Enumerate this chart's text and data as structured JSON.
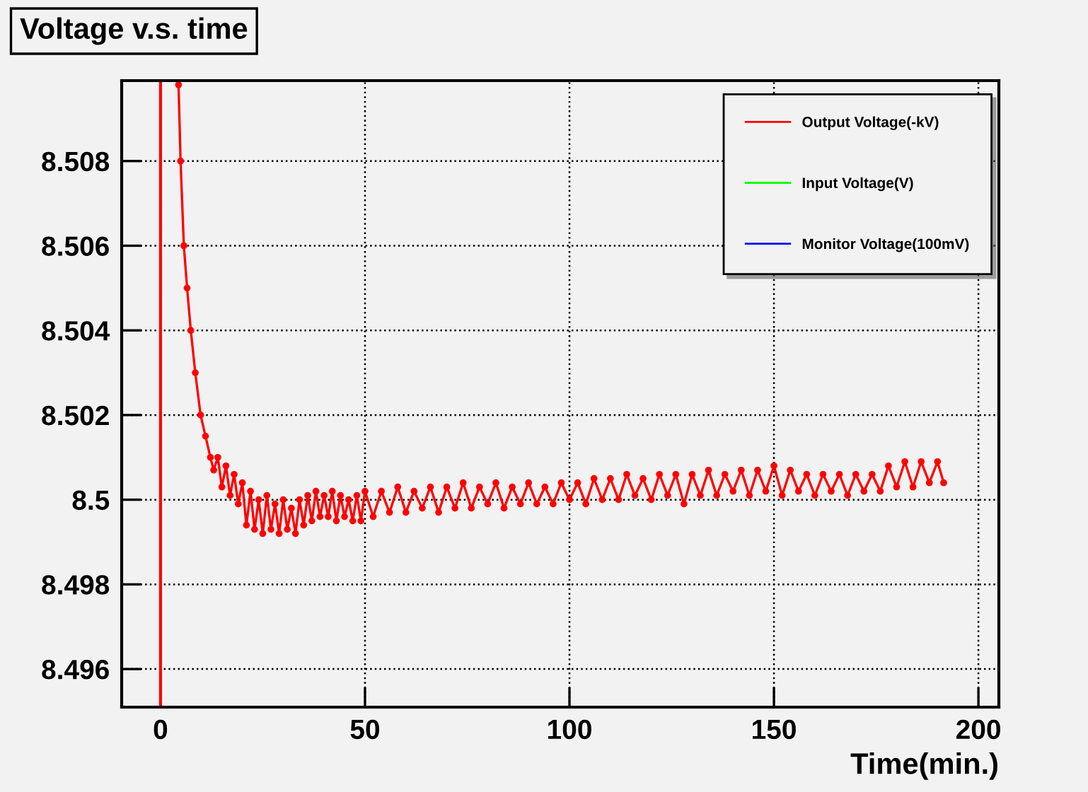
{
  "chart_data": {
    "type": "line",
    "title": "Voltage v.s. time",
    "xlabel": "Time(min.)",
    "xlim": [
      -9.5,
      205
    ],
    "xticks": [
      0,
      50,
      100,
      150,
      200
    ],
    "ylim": [
      8.4951,
      8.5099
    ],
    "yticks": [
      8.496,
      8.498,
      8.5,
      8.502,
      8.504,
      8.506,
      8.508
    ],
    "grid": true,
    "legend": "top right",
    "marker": "circle",
    "line_style": "solid",
    "ref_lines": [
      {
        "axis": "x",
        "value": 0,
        "color": "#ff0000"
      }
    ],
    "series": [
      {
        "name": "Output Voltage(-kV)",
        "color": "#ff0000",
        "x": [
          4.4,
          4.9,
          5.7,
          6.5,
          7.4,
          8.5,
          9.8,
          11,
          12.2,
          13,
          14,
          15,
          16,
          17,
          18,
          19,
          20,
          21,
          22,
          23,
          24,
          25,
          26,
          27,
          28,
          29,
          30,
          31,
          32,
          33,
          34,
          35,
          36,
          37,
          38,
          39,
          40,
          41,
          42,
          43,
          44,
          45,
          46,
          47,
          48,
          49,
          50,
          52,
          54,
          56,
          58,
          60,
          62,
          64,
          66,
          68,
          70,
          72,
          74,
          76,
          78,
          80,
          82,
          84,
          86,
          88,
          90,
          92,
          94,
          96,
          98,
          100,
          102,
          104,
          106,
          108,
          110,
          112,
          114,
          116,
          118,
          120,
          122,
          124,
          126,
          128,
          130,
          132,
          134,
          136,
          138,
          140,
          142,
          144,
          146,
          148,
          150,
          152,
          154,
          156,
          158,
          160,
          162,
          164,
          166,
          168,
          170,
          172,
          174,
          176,
          178,
          180,
          182,
          184,
          186,
          188,
          190,
          191.5
        ],
        "values": [
          8.5098,
          8.508,
          8.506,
          8.505,
          8.504,
          8.503,
          8.502,
          8.5015,
          8.501,
          8.5007,
          8.501,
          8.5003,
          8.5008,
          8.5001,
          8.5006,
          8.4999,
          8.5004,
          8.4994,
          8.5002,
          8.4993,
          8.5,
          8.4992,
          8.5001,
          8.4993,
          8.4999,
          8.4992,
          8.5,
          8.4993,
          8.4998,
          8.4992,
          8.5,
          8.4994,
          8.5001,
          8.4995,
          8.5002,
          8.4996,
          8.5001,
          8.4996,
          8.5002,
          8.4995,
          8.5001,
          8.4996,
          8.5,
          8.4995,
          8.5001,
          8.4995,
          8.5002,
          8.4996,
          8.5002,
          8.4997,
          8.5003,
          8.4997,
          8.5002,
          8.4998,
          8.5003,
          8.4997,
          8.5003,
          8.4998,
          8.5004,
          8.4998,
          8.5003,
          8.4999,
          8.5004,
          8.4998,
          8.5003,
          8.4999,
          8.5004,
          8.4999,
          8.5003,
          8.4999,
          8.5004,
          8.5,
          8.5004,
          8.4999,
          8.5005,
          8.5,
          8.5005,
          8.5,
          8.5006,
          8.5001,
          8.5005,
          8.5,
          8.5006,
          8.5001,
          8.5006,
          8.4999,
          8.5006,
          8.5001,
          8.5007,
          8.5001,
          8.5006,
          8.5002,
          8.5007,
          8.5001,
          8.5007,
          8.5002,
          8.5008,
          8.5001,
          8.5007,
          8.5002,
          8.5006,
          8.5001,
          8.5006,
          8.5002,
          8.5006,
          8.5001,
          8.5006,
          8.5002,
          8.5006,
          8.5002,
          8.5008,
          8.5003,
          8.5009,
          8.5003,
          8.5009,
          8.5004,
          8.5009,
          8.5004
        ]
      },
      {
        "name": "Input Voltage(V)",
        "color": "#00ff00"
      },
      {
        "name": "Monitor Voltage(100mV)",
        "color": "#0000ff"
      }
    ]
  }
}
